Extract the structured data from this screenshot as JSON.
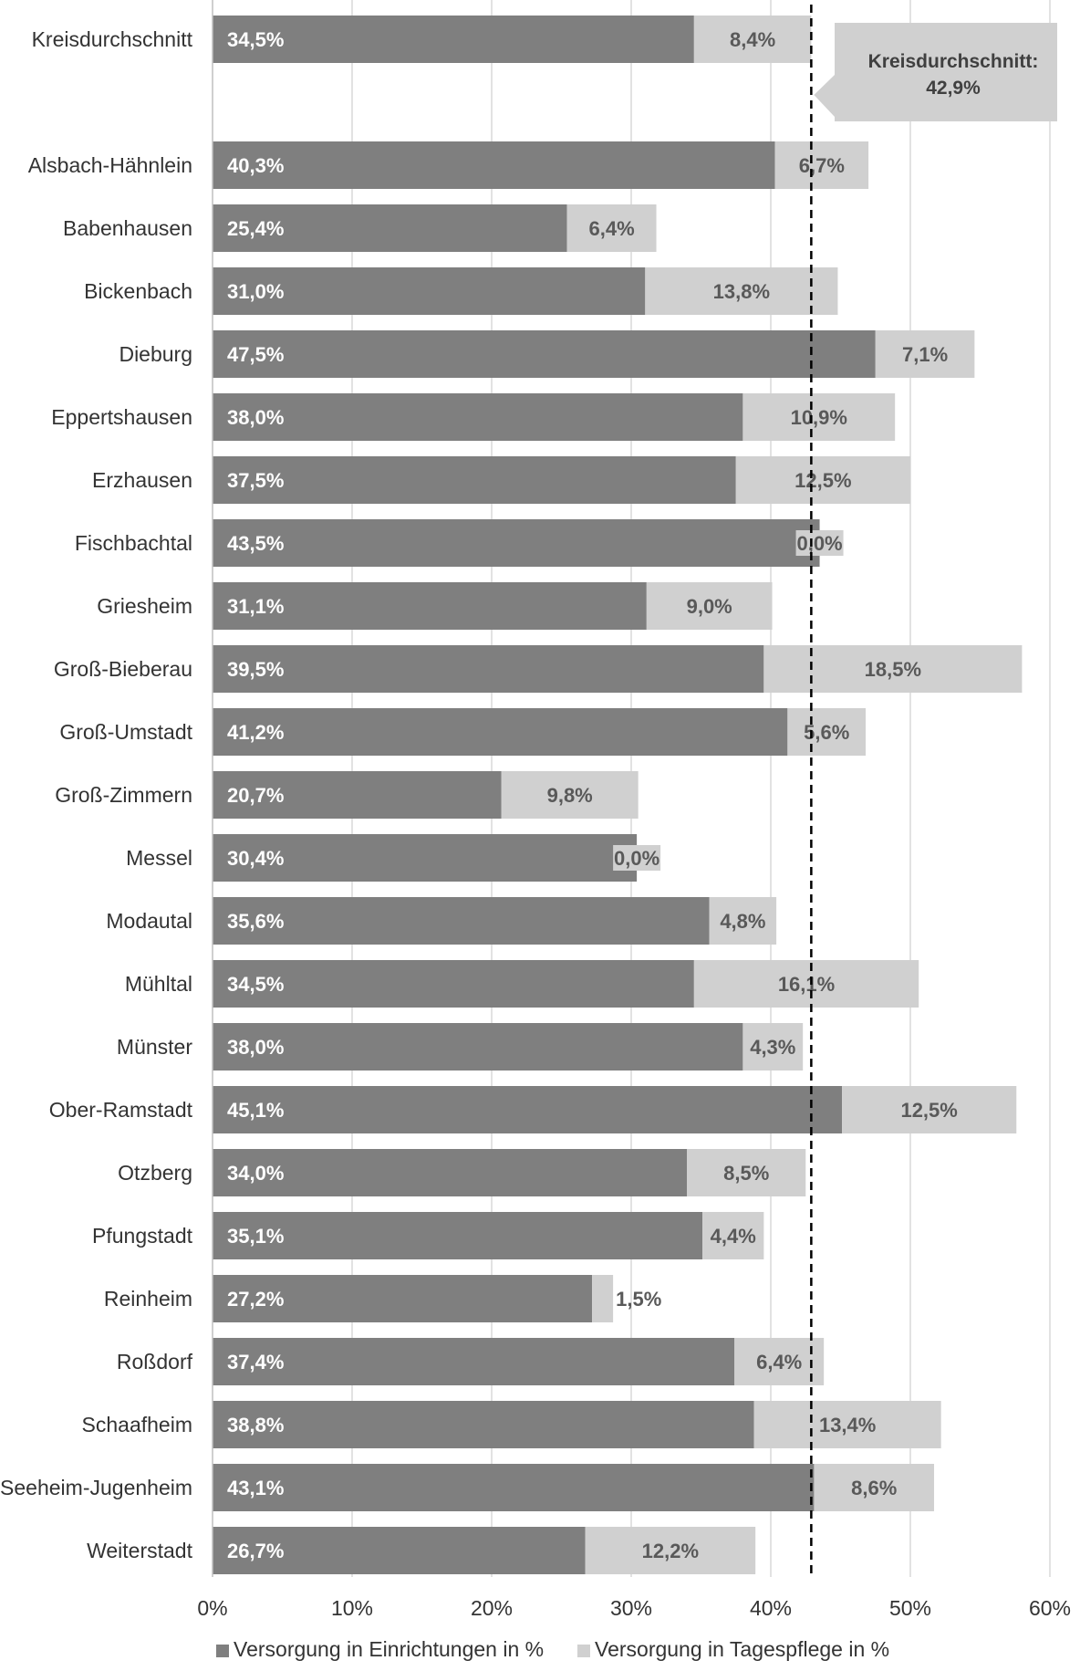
{
  "chart_data": {
    "type": "bar",
    "orientation": "horizontal",
    "stacked": true,
    "categories": [
      "Kreisdurchschnitt",
      "",
      "Alsbach-Hähnlein",
      "Babenhausen",
      "Bickenbach",
      "Dieburg",
      "Eppertshausen",
      "Erzhausen",
      "Fischbachtal",
      "Griesheim",
      "Groß-Bieberau",
      "Groß-Umstadt",
      "Groß-Zimmern",
      "Messel",
      "Modautal",
      "Mühltal",
      "Münster",
      "Ober-Ramstadt",
      "Otzberg",
      "Pfungstadt",
      "Reinheim",
      "Roßdorf",
      "Schaafheim",
      "Seeheim-Jugenheim",
      "Weiterstadt"
    ],
    "series": [
      {
        "name": "Versorgung in Einrichtungen in %",
        "color": "#7f7f7f",
        "values": [
          34.5,
          null,
          40.3,
          25.4,
          31.0,
          47.5,
          38.0,
          37.5,
          43.5,
          31.1,
          39.5,
          41.2,
          20.7,
          30.4,
          35.6,
          34.5,
          38.0,
          45.1,
          34.0,
          35.1,
          27.2,
          37.4,
          38.8,
          43.1,
          26.7
        ],
        "labels": [
          "34,5%",
          "",
          "40,3%",
          "25,4%",
          "31,0%",
          "47,5%",
          "38,0%",
          "37,5%",
          "43,5%",
          "31,1%",
          "39,5%",
          "41,2%",
          "20,7%",
          "30,4%",
          "35,6%",
          "34,5%",
          "38,0%",
          "45,1%",
          "34,0%",
          "35,1%",
          "27,2%",
          "37,4%",
          "38,8%",
          "43,1%",
          "26,7%"
        ]
      },
      {
        "name": "Versorgung in Tagespflege in %",
        "color": "#d0d0d0",
        "values": [
          8.4,
          null,
          6.7,
          6.4,
          13.8,
          7.1,
          10.9,
          12.5,
          0.0,
          9.0,
          18.5,
          5.6,
          9.8,
          0.0,
          4.8,
          16.1,
          4.3,
          12.5,
          8.5,
          4.4,
          1.5,
          6.4,
          13.4,
          8.6,
          12.2
        ],
        "labels": [
          "8,4%",
          "",
          "6,7%",
          "6,4%",
          "13,8%",
          "7,1%",
          "10,9%",
          "12,5%",
          "0,0%",
          "9,0%",
          "18,5%",
          "5,6%",
          "9,8%",
          "0,0%",
          "4,8%",
          "16,1%",
          "4,3%",
          "12,5%",
          "8,5%",
          "4,4%",
          "1,5%",
          "6,4%",
          "13,4%",
          "8,6%",
          "12,2%"
        ]
      }
    ],
    "xlim": [
      0,
      60
    ],
    "xticks": [
      0,
      10,
      20,
      30,
      40,
      50,
      60
    ],
    "xtick_labels": [
      "0%",
      "10%",
      "20%",
      "30%",
      "40%",
      "50%",
      "60%"
    ],
    "grid": "vertical",
    "reference_line": {
      "value": 42.9,
      "style": "dashed",
      "color": "#000000"
    },
    "annotation": {
      "line1": "Kreisdurchschnitt:",
      "line2": "42,9%",
      "placement": "top-right"
    },
    "legend": {
      "placement": "bottom"
    },
    "title": "",
    "xlabel": "",
    "ylabel": ""
  }
}
